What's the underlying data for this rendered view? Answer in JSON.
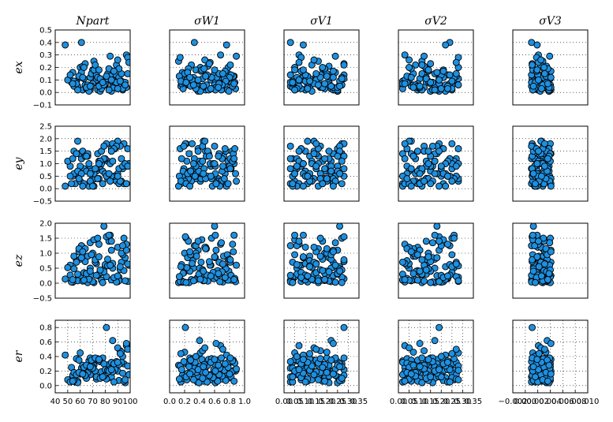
{
  "chart_data": {
    "type": "scatter",
    "layout": "scatter-matrix",
    "grid": true,
    "point_color": "#1e90e0",
    "point_edge_color": "#000000",
    "columns": [
      {
        "id": "npart",
        "title": "Npart",
        "xlim": [
          40,
          100
        ],
        "xticks": [
          "40",
          "50",
          "60",
          "70",
          "80",
          "90",
          "100"
        ],
        "show_xticks": true
      },
      {
        "id": "sw1",
        "title": "σW1",
        "xlim": [
          0.0,
          1.0
        ],
        "xticks": [
          "0.0",
          "0.2",
          "0.4",
          "0.6",
          "0.8",
          "1.0"
        ],
        "show_xticks": true
      },
      {
        "id": "sv1",
        "title": "σV1",
        "xlim": [
          0.0,
          0.35
        ],
        "xticks": [
          "0.00",
          "0.05",
          "0.10",
          "0.15",
          "0.20",
          "0.25",
          "0.30",
          "0.35"
        ],
        "show_xticks": true
      },
      {
        "id": "sv2",
        "title": "σV2",
        "xlim": [
          0.0,
          0.35
        ],
        "xticks": [
          "0.00",
          "0.05",
          "0.10",
          "0.15",
          "0.20",
          "0.25",
          "0.30",
          "0.35"
        ],
        "show_xticks": true
      },
      {
        "id": "sv3",
        "title": "σV3",
        "xlim": [
          -0.002,
          0.01
        ],
        "xticks": [
          "−0.002",
          "0.000",
          "0.002",
          "0.004",
          "0.006",
          "0.008",
          "0.010"
        ],
        "show_xticks": true
      }
    ],
    "rows": [
      {
        "id": "ex",
        "label": "ex",
        "ylim": [
          -0.1,
          0.5
        ],
        "yticks": [
          "−0.1",
          "0.0",
          "0.1",
          "0.2",
          "0.3",
          "0.4",
          "0.5"
        ]
      },
      {
        "id": "ey",
        "label": "ey",
        "ylim": [
          -0.5,
          2.5
        ],
        "yticks": [
          "−0.5",
          "0.0",
          "0.5",
          "1.0",
          "1.5",
          "2.0",
          "2.5"
        ]
      },
      {
        "id": "ez",
        "label": "ez",
        "ylim": [
          -0.5,
          2.0
        ],
        "yticks": [
          "−0.5",
          "0.0",
          "0.5",
          "1.0",
          "1.5",
          "2.0"
        ]
      },
      {
        "id": "er",
        "label": "er",
        "ylim": [
          -0.1,
          0.9
        ],
        "yticks": [
          "0.0",
          "0.2",
          "0.4",
          "0.6",
          "0.8"
        ]
      }
    ],
    "variables": {
      "npart": [
        56,
        68,
        62,
        75,
        82,
        90,
        95,
        60,
        52,
        66,
        71,
        78,
        85,
        88,
        93,
        97,
        58,
        63,
        70,
        74,
        80,
        84,
        89,
        92,
        96,
        54,
        61,
        67,
        73,
        77,
        83,
        86,
        91,
        94,
        98,
        57,
        64,
        69,
        76,
        81,
        87,
        99,
        53,
        59,
        65,
        72,
        79,
        48,
        50,
        55,
        62,
        68,
        73,
        80,
        85,
        90,
        95,
        60,
        66,
        71,
        77,
        82,
        88,
        93,
        58,
        64,
        70,
        75,
        81,
        86,
        91,
        97,
        55,
        61,
        67,
        74,
        79,
        84,
        89,
        94,
        52,
        57,
        63,
        69,
        76,
        83,
        87,
        92,
        96,
        59,
        65,
        72,
        78,
        85,
        90,
        98,
        54,
        62,
        68,
        75
      ],
      "sw1": [
        0.15,
        0.32,
        0.48,
        0.65,
        0.78,
        0.88,
        0.22,
        0.41,
        0.55,
        0.72,
        0.12,
        0.27,
        0.38,
        0.59,
        0.81,
        0.68,
        0.45,
        0.19,
        0.35,
        0.52,
        0.74,
        0.86,
        0.29,
        0.44,
        0.61,
        0.17,
        0.33,
        0.57,
        0.7,
        0.83,
        0.25,
        0.4,
        0.63,
        0.77,
        0.14,
        0.31,
        0.49,
        0.66,
        0.79,
        0.21,
        0.37,
        0.54,
        0.71,
        0.85,
        0.18,
        0.42,
        0.6,
        0.76,
        0.23,
        0.36,
        0.51,
        0.69,
        0.82,
        0.16,
        0.34,
        0.47,
        0.64,
        0.8,
        0.26,
        0.43,
        0.58,
        0.73,
        0.87,
        0.2,
        0.39,
        0.53,
        0.67,
        0.84,
        0.13,
        0.3,
        0.46,
        0.62,
        0.75,
        0.24,
        0.41,
        0.56,
        0.7,
        0.89,
        0.19,
        0.35,
        0.5,
        0.66,
        0.78,
        0.28,
        0.44,
        0.61,
        0.74,
        0.15,
        0.32,
        0.48,
        0.65,
        0.81,
        0.22,
        0.38,
        0.55,
        0.71,
        0.86,
        0.27,
        0.45,
        0.6
      ],
      "sv1": [
        0.03,
        0.06,
        0.1,
        0.14,
        0.18,
        0.22,
        0.27,
        0.05,
        0.08,
        0.12,
        0.16,
        0.2,
        0.25,
        0.28,
        0.04,
        0.07,
        0.11,
        0.15,
        0.19,
        0.23,
        0.26,
        0.09,
        0.13,
        0.17,
        0.21,
        0.24,
        0.03,
        0.06,
        0.1,
        0.14,
        0.18,
        0.22,
        0.27,
        0.05,
        0.08,
        0.12,
        0.16,
        0.2,
        0.25,
        0.28,
        0.04,
        0.07,
        0.11,
        0.15,
        0.19,
        0.23,
        0.26,
        0.09,
        0.13,
        0.17,
        0.21,
        0.24,
        0.03,
        0.06,
        0.1,
        0.14,
        0.18,
        0.22,
        0.27,
        0.05,
        0.08,
        0.12,
        0.16,
        0.2,
        0.25,
        0.28,
        0.04,
        0.07,
        0.11,
        0.15,
        0.19,
        0.23,
        0.26,
        0.09,
        0.13,
        0.17,
        0.21,
        0.24,
        0.03,
        0.06,
        0.1,
        0.14,
        0.18,
        0.22,
        0.27,
        0.05,
        0.08,
        0.12,
        0.16,
        0.2,
        0.25,
        0.28,
        0.04,
        0.07,
        0.11,
        0.15,
        0.19,
        0.23,
        0.26,
        0.09
      ],
      "sv2": [
        0.02,
        0.05,
        0.09,
        0.13,
        0.17,
        0.21,
        0.25,
        0.28,
        0.04,
        0.07,
        0.11,
        0.15,
        0.19,
        0.23,
        0.27,
        0.03,
        0.06,
        0.1,
        0.14,
        0.18,
        0.22,
        0.26,
        0.08,
        0.12,
        0.16,
        0.2,
        0.24,
        0.02,
        0.05,
        0.09,
        0.13,
        0.17,
        0.21,
        0.25,
        0.28,
        0.04,
        0.07,
        0.11,
        0.15,
        0.19,
        0.23,
        0.27,
        0.03,
        0.06,
        0.1,
        0.14,
        0.18,
        0.22,
        0.26,
        0.08,
        0.12,
        0.16,
        0.2,
        0.24,
        0.02,
        0.05,
        0.09,
        0.13,
        0.17,
        0.21,
        0.25,
        0.28,
        0.04,
        0.07,
        0.11,
        0.15,
        0.19,
        0.23,
        0.27,
        0.03,
        0.06,
        0.1,
        0.14,
        0.18,
        0.22,
        0.26,
        0.08,
        0.12,
        0.16,
        0.2,
        0.24,
        0.02,
        0.05,
        0.09,
        0.13,
        0.17,
        0.21,
        0.25,
        0.28,
        0.04,
        0.07,
        0.11,
        0.15,
        0.19,
        0.23,
        0.27,
        0.03,
        0.06,
        0.1,
        0.14
      ],
      "sv3": [
        0.001,
        0.0015,
        0.002,
        0.0025,
        0.003,
        0.0035,
        0.004,
        0.0012,
        0.0018,
        0.0022,
        0.0028,
        0.0033,
        0.0038,
        0.0011,
        0.0016,
        0.0021,
        0.0026,
        0.0031,
        0.0036,
        0.0041,
        0.0013,
        0.0019,
        0.0024,
        0.0029,
        0.0034,
        0.0039,
        0.001,
        0.0015,
        0.002,
        0.0025,
        0.003,
        0.0035,
        0.004,
        0.0012,
        0.0018,
        0.0022,
        0.0028,
        0.0033,
        0.0038,
        0.0011,
        0.0016,
        0.0021,
        0.0026,
        0.0031,
        0.0036,
        0.0041,
        0.0013,
        0.0019,
        0.0024,
        0.0029,
        0.0034,
        0.0039,
        0.001,
        0.0015,
        0.002,
        0.0025,
        0.003,
        0.0035,
        0.004,
        0.0012,
        0.0018,
        0.0022,
        0.0028,
        0.0033,
        0.0038,
        0.0011,
        0.0016,
        0.0021,
        0.0026,
        0.0031,
        0.0036,
        0.0041,
        0.0013,
        0.0019,
        0.0024,
        0.0029,
        0.0034,
        0.0039,
        0.001,
        0.0015,
        0.002,
        0.0025,
        0.003,
        0.0035,
        0.004,
        0.0012,
        0.0018,
        0.0022,
        0.0028,
        0.0033,
        0.0038,
        0.0011,
        0.0016,
        0.0021,
        0.0026,
        0.0031,
        0.0036,
        0.0041,
        0.0013,
        0.0019
      ],
      "ex": [
        0.05,
        0.12,
        0.02,
        0.08,
        0.15,
        0.03,
        0.06,
        0.2,
        0.1,
        0.04,
        0.25,
        0.07,
        0.01,
        0.14,
        0.09,
        0.3,
        0.05,
        0.11,
        0.18,
        0.02,
        0.06,
        0.13,
        0.22,
        0.04,
        0.08,
        0.16,
        0.4,
        0.03,
        0.1,
        0.07,
        0.19,
        0.05,
        0.12,
        0.02,
        0.28,
        0.09,
        0.06,
        0.15,
        0.01,
        0.11,
        0.04,
        0.24,
        0.08,
        0.13,
        0.03,
        0.17,
        0.06,
        0.38,
        0.1,
        0.05,
        0.21,
        0.02,
        0.14,
        0.07,
        0.09,
        0.26,
        0.04,
        0.12,
        0.06,
        0.18,
        0.03,
        0.11,
        0.08,
        0.15,
        0.02,
        0.23,
        0.07,
        0.05,
        0.13,
        0.1,
        0.19,
        0.04,
        0.09,
        0.16,
        0.01,
        0.12,
        0.06,
        0.29,
        0.08,
        0.03,
        0.14,
        0.07,
        0.2,
        0.05,
        0.11,
        0.02,
        0.17,
        0.09,
        0.06,
        0.13,
        0.04,
        0.22,
        0.08,
        0.1,
        0.03,
        0.15,
        0.07,
        0.12,
        0.05,
        0.18
      ],
      "ey": [
        0.2,
        0.8,
        1.5,
        0.4,
        1.1,
        0.6,
        1.8,
        0.3,
        0.9,
        1.3,
        0.1,
        0.7,
        1.6,
        0.5,
        1.2,
        0.2,
        1.9,
        0.8,
        0.4,
        1.4,
        0.6,
        1.0,
        0.3,
        1.7,
        0.9,
        0.5,
        1.2,
        0.1,
        0.7,
        1.5,
        0.4,
        1.1,
        0.2,
        0.8,
        1.6,
        0.6,
        1.3,
        0.3,
        0.9,
        1.8,
        0.5,
        1.0,
        0.2,
        1.4,
        0.7,
        0.4,
        1.7,
        0.1,
        1.1,
        0.6,
        1.5,
        0.3,
        0.8,
        1.2,
        0.5,
        1.9,
        0.2,
        0.9,
        1.4,
        0.6,
        1.0,
        0.4,
        1.6,
        0.3,
        0.7,
        1.3,
        0.1,
        1.1,
        0.5,
        1.8,
        0.8,
        0.2,
        1.5,
        0.6,
        1.0,
        0.4,
        1.2,
        0.3,
        1.7,
        0.9,
        0.5,
        1.4,
        0.2,
        0.7,
        1.1,
        0.6,
        1.6,
        0.3,
        1.0,
        0.4,
        1.3,
        0.8,
        0.2,
        1.5,
        0.5,
        0.9,
        1.2,
        0.1,
        0.6,
        1.0
      ],
      "ez": [
        0.1,
        0.5,
        1.2,
        0.3,
        0.8,
        0.05,
        1.5,
        0.2,
        0.6,
        0.9,
        0.02,
        0.4,
        1.1,
        0.15,
        0.7,
        1.3,
        0.08,
        0.35,
        1.0,
        0.25,
        0.55,
        1.6,
        0.12,
        0.45,
        0.85,
        0.03,
        1.25,
        0.3,
        0.65,
        0.1,
        1.4,
        0.5,
        0.2,
        0.95,
        0.06,
        0.75,
        1.15,
        0.28,
        0.4,
        1.55,
        0.18,
        0.6,
        0.04,
        1.05,
        0.33,
        0.7,
        1.9,
        0.14,
        0.52,
        0.9,
        0.07,
        1.35,
        0.26,
        0.62,
        0.11,
        1.2,
        0.42,
        0.8,
        0.02,
        1.45,
        0.36,
        0.58,
        0.16,
        1.0,
        0.3,
        0.72,
        0.05,
        1.3,
        0.22,
        0.66,
        0.09,
        1.1,
        0.48,
        0.85,
        0.13,
        1.5,
        0.38,
        0.6,
        0.04,
        1.25,
        0.27,
        0.7,
        0.1,
        0.95,
        0.44,
        1.6,
        0.19,
        0.55,
        0.08,
        1.15,
        0.32,
        0.78,
        0.02,
        1.4,
        0.24,
        0.64,
        0.12,
        1.05,
        0.4,
        0.88
      ],
      "er": [
        0.05,
        0.15,
        0.25,
        0.35,
        0.1,
        0.2,
        0.3,
        0.45,
        0.08,
        0.18,
        0.28,
        0.38,
        0.12,
        0.22,
        0.32,
        0.55,
        0.06,
        0.16,
        0.26,
        0.36,
        0.11,
        0.21,
        0.31,
        0.48,
        0.04,
        0.14,
        0.24,
        0.34,
        0.09,
        0.19,
        0.29,
        0.62,
        0.07,
        0.17,
        0.27,
        0.37,
        0.13,
        0.23,
        0.33,
        0.8,
        0.05,
        0.15,
        0.25,
        0.35,
        0.1,
        0.2,
        0.3,
        0.42,
        0.08,
        0.18,
        0.28,
        0.38,
        0.12,
        0.22,
        0.32,
        0.52,
        0.06,
        0.16,
        0.26,
        0.36,
        0.11,
        0.21,
        0.31,
        0.46,
        0.04,
        0.14,
        0.24,
        0.34,
        0.09,
        0.19,
        0.29,
        0.58,
        0.07,
        0.17,
        0.27,
        0.37,
        0.13,
        0.23,
        0.33,
        0.4,
        0.05,
        0.15,
        0.25,
        0.35,
        0.1,
        0.2,
        0.3,
        0.44,
        0.08,
        0.18,
        0.28,
        0.38,
        0.12,
        0.22,
        0.32,
        0.5,
        0.06,
        0.16,
        0.26,
        0.36
      ]
    }
  }
}
